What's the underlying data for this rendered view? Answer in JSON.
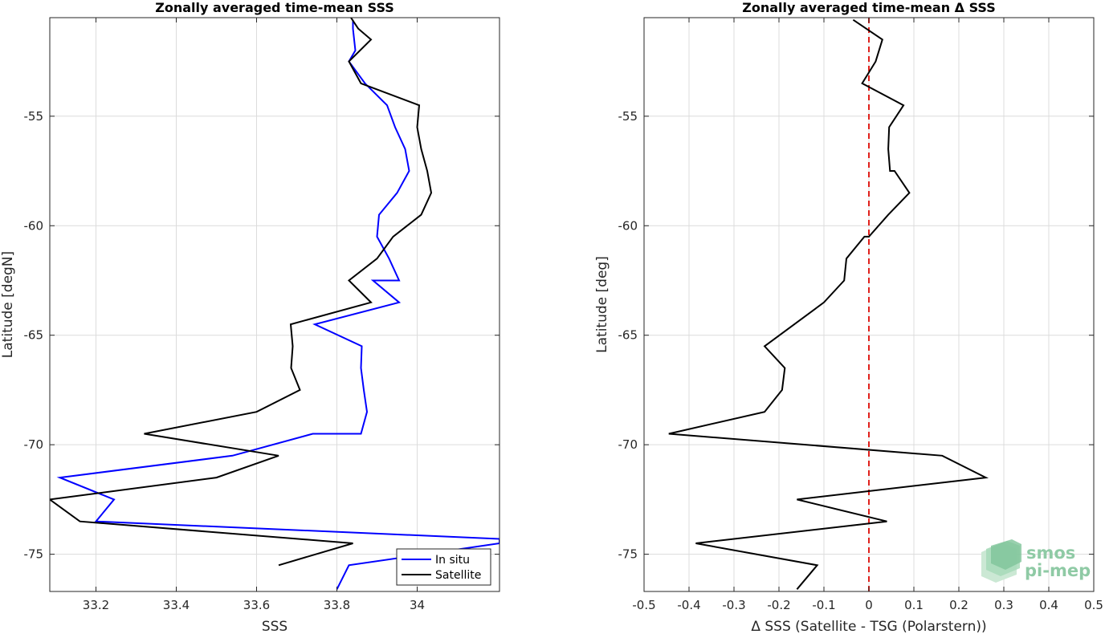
{
  "chart_data": [
    {
      "type": "line",
      "title": "Zonally averaged time-mean SSS",
      "xlabel": "SSS",
      "ylabel": "Latitude [degN]",
      "xlim": [
        33.085,
        34.205
      ],
      "ylim": [
        -76.7,
        -50.5
      ],
      "xticks": [
        "33.2",
        "33.4",
        "33.6",
        "33.8",
        "34"
      ],
      "yticks": [
        "-55",
        "-60",
        "-65",
        "-70",
        "-75"
      ],
      "grid": true,
      "legend": {
        "placement": "bottom-right",
        "entries": [
          "In situ",
          "Satellite"
        ]
      },
      "series": [
        {
          "name": "In situ",
          "color": "#0000ff",
          "x": [
            33.84,
            33.84,
            33.846,
            33.83,
            33.87,
            33.925,
            33.945,
            33.97,
            33.98,
            33.95,
            33.905,
            33.9,
            33.93,
            33.955,
            33.89,
            33.955,
            33.745,
            33.862,
            33.86,
            33.867,
            33.875,
            33.86,
            33.74,
            33.54,
            33.11,
            33.245,
            33.2,
            34.205,
            34.205,
            33.83,
            33.8
          ],
          "y": [
            -50.6,
            -51.0,
            -52.0,
            -52.5,
            -53.5,
            -54.5,
            -55.5,
            -56.5,
            -57.5,
            -58.5,
            -59.5,
            -60.5,
            -61.5,
            -62.5,
            -62.5,
            -63.5,
            -64.5,
            -65.5,
            -66.5,
            -67.5,
            -68.5,
            -69.5,
            -69.5,
            -70.5,
            -71.5,
            -72.5,
            -73.5,
            -74.3,
            -74.5,
            -75.5,
            -76.6
          ]
        },
        {
          "name": "Satellite",
          "color": "#000000",
          "x": [
            33.835,
            33.853,
            33.885,
            33.83,
            33.86,
            34.005,
            34.0,
            34.01,
            34.025,
            34.035,
            34.01,
            33.94,
            33.9,
            33.9,
            33.83,
            33.885,
            33.685,
            33.69,
            33.686,
            33.708,
            33.6,
            33.32,
            33.655,
            33.5,
            33.085,
            33.16,
            33.84,
            33.655
          ],
          "y": [
            -50.5,
            -51.0,
            -51.5,
            -52.5,
            -53.5,
            -54.5,
            -55.5,
            -56.5,
            -57.5,
            -58.5,
            -59.5,
            -60.5,
            -61.5,
            -61.5,
            -62.5,
            -63.5,
            -64.5,
            -65.5,
            -66.5,
            -67.5,
            -68.5,
            -69.5,
            -70.5,
            -71.5,
            -72.5,
            -73.5,
            -74.5,
            -75.5
          ]
        }
      ]
    },
    {
      "type": "line",
      "title": "Zonally averaged time-mean Δ SSS",
      "xlabel": "Δ SSS (Satellite - TSG (Polarstern))",
      "ylabel": "Latitude [deg]",
      "xlim": [
        -0.5,
        0.5
      ],
      "ylim": [
        -76.7,
        -50.5
      ],
      "xticks": [
        "-0.5",
        "-0.4",
        "-0.3",
        "-0.2",
        "-0.1",
        "0",
        "0.1",
        "0.2",
        "0.3",
        "0.4",
        "0.5"
      ],
      "yticks": [
        "-55",
        "-60",
        "-65",
        "-70",
        "-75"
      ],
      "grid": true,
      "reference_line": {
        "x": 0,
        "color": "#e0201b",
        "style": "dashed"
      },
      "series": [
        {
          "color": "#000000",
          "x": [
            -0.035,
            0.03,
            0.015,
            -0.015,
            0.077,
            0.045,
            0.043,
            0.047,
            0.057,
            0.09,
            0.043,
            0.0,
            -0.01,
            -0.05,
            -0.055,
            -0.1,
            -0.232,
            -0.187,
            -0.193,
            -0.232,
            -0.445,
            0.163,
            0.26,
            -0.16,
            0.04,
            -0.385,
            -0.115,
            -0.16
          ],
          "y": [
            -50.6,
            -51.5,
            -52.5,
            -53.5,
            -54.5,
            -55.5,
            -56.5,
            -57.5,
            -57.5,
            -58.5,
            -59.5,
            -60.5,
            -60.5,
            -61.5,
            -62.5,
            -63.5,
            -65.5,
            -66.5,
            -67.5,
            -68.5,
            -69.5,
            -70.5,
            -71.5,
            -72.5,
            -73.5,
            -74.5,
            -75.5,
            -76.6
          ]
        }
      ]
    }
  ],
  "logo": {
    "line1": "smos",
    "line2": "pi-mep"
  }
}
